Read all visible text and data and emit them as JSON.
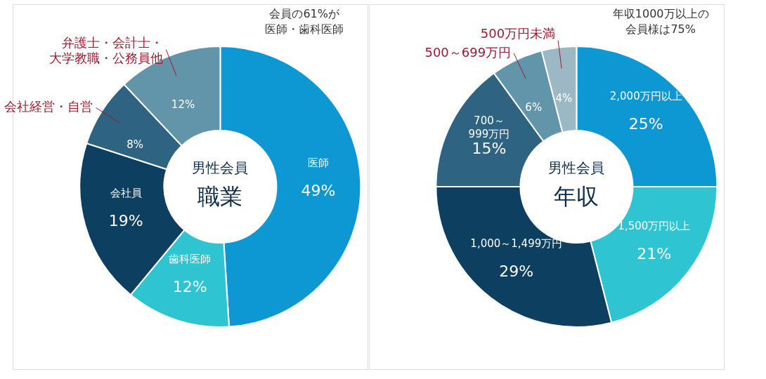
{
  "chart_data": [
    {
      "type": "donut",
      "title": "男性会員",
      "subtitle": "職業",
      "categories": [
        "医師",
        "歯科医師",
        "会社員",
        "会社経営・自営",
        "弁護士・会計士・大学教職・公務員他"
      ],
      "values": [
        49,
        12,
        19,
        8,
        12
      ],
      "colors": [
        "#0e98d3",
        "#2ec4d2",
        "#0c3f60",
        "#2e6381",
        "#6294aa"
      ],
      "value_labels": [
        "49%",
        "12%",
        "19%",
        "8%",
        "12%"
      ],
      "annotations": [
        "会員の61%が医師・歯科医師"
      ]
    },
    {
      "type": "donut",
      "title": "男性会員",
      "subtitle": "年収",
      "categories": [
        "2,000万円以上",
        "1,500万円以上",
        "1,000～1,499万円",
        "700～999万円",
        "500～699万円",
        "500万円未満"
      ],
      "values": [
        25,
        21,
        29,
        15,
        6,
        4
      ],
      "colors": [
        "#0e98d3",
        "#2ec4d2",
        "#0c3f60",
        "#2e6381",
        "#6294aa",
        "#9bb8c4"
      ],
      "value_labels": [
        "25%",
        "21%",
        "29%",
        "15%",
        "6%",
        "4%"
      ],
      "annotations": [
        "年収1000万以上の会員様は75%"
      ]
    }
  ]
}
